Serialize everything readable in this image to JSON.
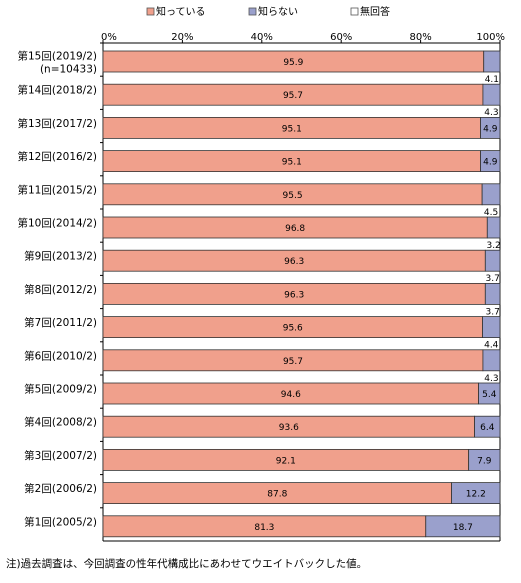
{
  "chart_data": {
    "type": "bar",
    "orientation": "horizontal",
    "stacked": true,
    "categories": [
      [
        "第15回(2019/2)",
        "(n=10433)"
      ],
      [
        "第14回(2018/2)"
      ],
      [
        "第13回(2017/2)"
      ],
      [
        "第12回(2016/2)"
      ],
      [
        "第11回(2015/2)"
      ],
      [
        "第10回(2014/2)"
      ],
      [
        "第9回(2013/2)"
      ],
      [
        "第8回(2012/2)"
      ],
      [
        "第7回(2011/2)"
      ],
      [
        "第6回(2010/2)"
      ],
      [
        "第5回(2009/2)"
      ],
      [
        "第4回(2008/2)"
      ],
      [
        "第3回(2007/2)"
      ],
      [
        "第2回(2006/2)"
      ],
      [
        "第1回(2005/2)"
      ]
    ],
    "series": [
      {
        "name": "知っている",
        "color": "#f0a08c",
        "values": [
          95.9,
          95.7,
          95.1,
          95.1,
          95.5,
          96.8,
          96.3,
          96.3,
          95.6,
          95.7,
          94.6,
          93.6,
          92.1,
          87.8,
          81.3
        ]
      },
      {
        "name": "知らない",
        "color": "#9aa0cc",
        "values": [
          4.1,
          4.3,
          4.9,
          4.9,
          4.5,
          3.2,
          3.7,
          3.7,
          4.4,
          4.3,
          5.4,
          6.4,
          7.9,
          12.2,
          18.7
        ]
      },
      {
        "name": "無回答",
        "color": "#ffffff",
        "values": [
          0,
          0,
          0,
          0,
          0,
          0,
          0,
          0,
          0,
          0,
          0,
          0,
          0,
          0,
          0
        ]
      }
    ],
    "xlim": [
      0,
      100
    ],
    "xticks": [
      "0%",
      "20%",
      "40%",
      "60%",
      "80%",
      "100%"
    ],
    "legend_position": "top",
    "grid": false
  },
  "note": "注)過去調査は、今回調査の性年代構成比にあわせてウエイトバックした値。"
}
